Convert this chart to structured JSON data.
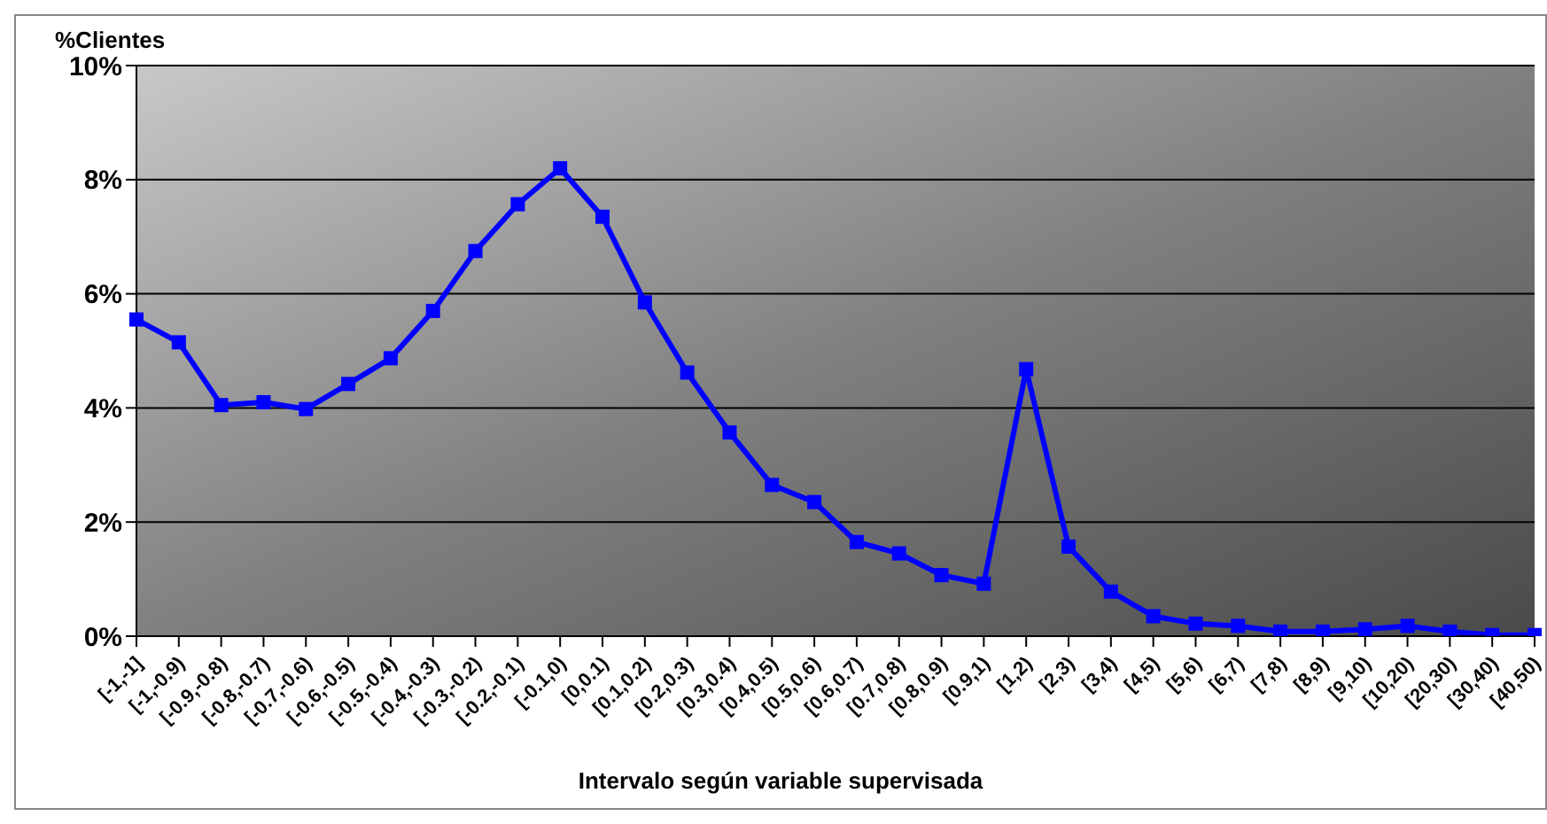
{
  "chart_data": {
    "type": "line",
    "ylabel": "%Clientes",
    "xlabel": "Intervalo según variable supervisada",
    "categories": [
      "[-1,-1]",
      "[-1,-0.9)",
      "[-0.9,-0.8)",
      "[-0.8,-0.7)",
      "[-0.7,-0.6)",
      "[-0.6,-0.5)",
      "[-0.5,-0.4)",
      "[-0.4,-0.3)",
      "[-0.3,-0.2)",
      "[-0.2,-0.1)",
      "[-0.1,0)",
      "[0,0.1)",
      "[0.1,0.2)",
      "[0.2,0.3)",
      "[0.3,0.4)",
      "[0.4,0.5)",
      "[0.5,0.6)",
      "[0.6,0.7)",
      "[0.7,0.8)",
      "[0.8,0.9)",
      "[0.9,1)",
      "[1,2)",
      "[2,3)",
      "[3,4)",
      "[4,5)",
      "[5,6)",
      "[6,7)",
      "[7,8)",
      "[8,9)",
      "[9,10)",
      "[10,20)",
      "[20,30)",
      "[30,40)",
      "[40,50)"
    ],
    "series": [
      {
        "color": "#0000ff",
        "values": [
          5.55,
          5.15,
          4.05,
          4.1,
          3.98,
          4.42,
          4.87,
          5.7,
          6.75,
          7.57,
          8.2,
          7.35,
          5.85,
          4.62,
          3.57,
          2.65,
          2.35,
          1.65,
          1.45,
          1.07,
          0.92,
          4.68,
          1.57,
          0.78,
          0.35,
          0.22,
          0.18,
          0.08,
          0.08,
          0.12,
          0.18,
          0.08,
          0.02,
          0.02
        ]
      }
    ],
    "ylim": [
      0,
      10
    ],
    "yticks": [
      {
        "value": 0,
        "label": "0%"
      },
      {
        "value": 2,
        "label": "2%"
      },
      {
        "value": 4,
        "label": "4%"
      },
      {
        "value": 6,
        "label": "6%"
      },
      {
        "value": 8,
        "label": "8%"
      },
      {
        "value": 10,
        "label": "10%"
      }
    ],
    "grid": "y",
    "marker": "square"
  }
}
